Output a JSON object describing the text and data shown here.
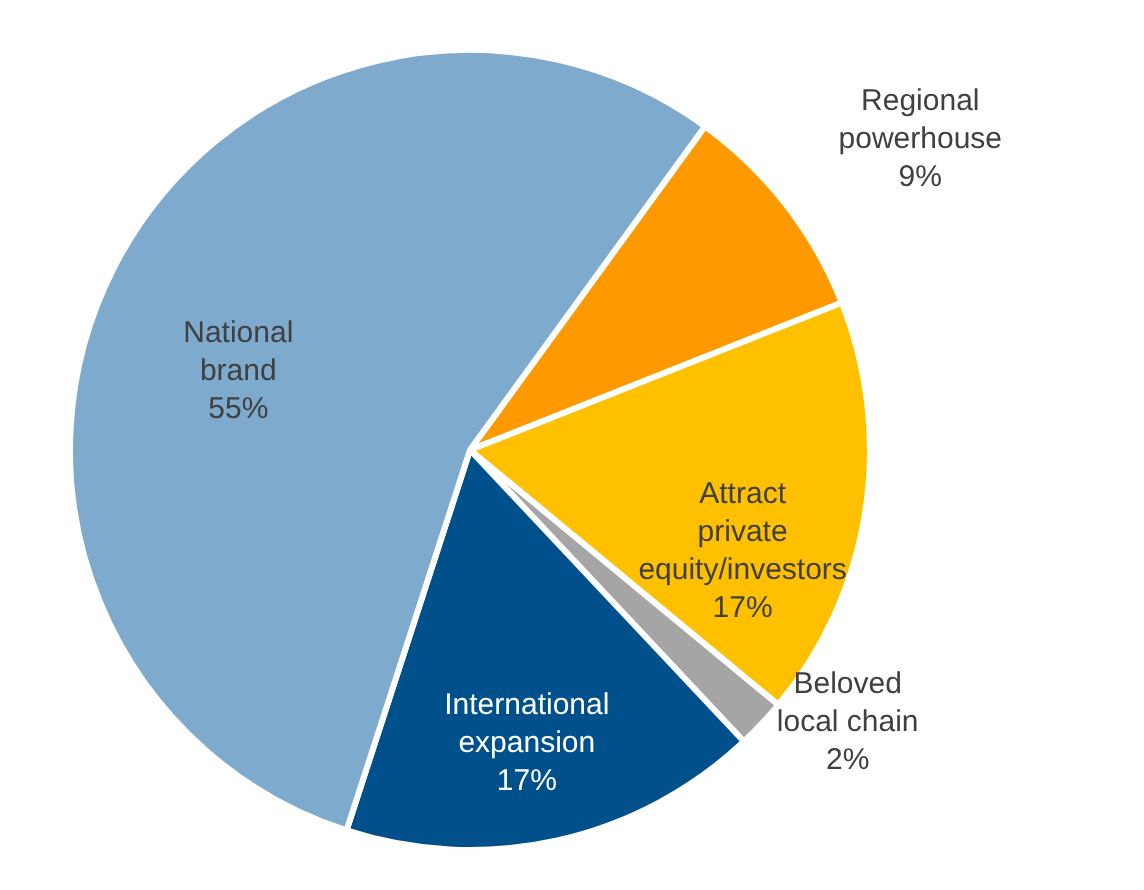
{
  "chart_data": {
    "type": "pie",
    "categories": [
      "Regional powerhouse",
      "Attract private equity/investors",
      "Beloved local chain",
      "International expansion",
      "National brand"
    ],
    "values": [
      9,
      17,
      2,
      17,
      55
    ],
    "colors": [
      "#ff9900",
      "#ffc000",
      "#a5a5a5",
      "#00508c",
      "#7eaacd"
    ],
    "value_labels": [
      "9%",
      "17%",
      "2%",
      "17%",
      "55%"
    ]
  }
}
